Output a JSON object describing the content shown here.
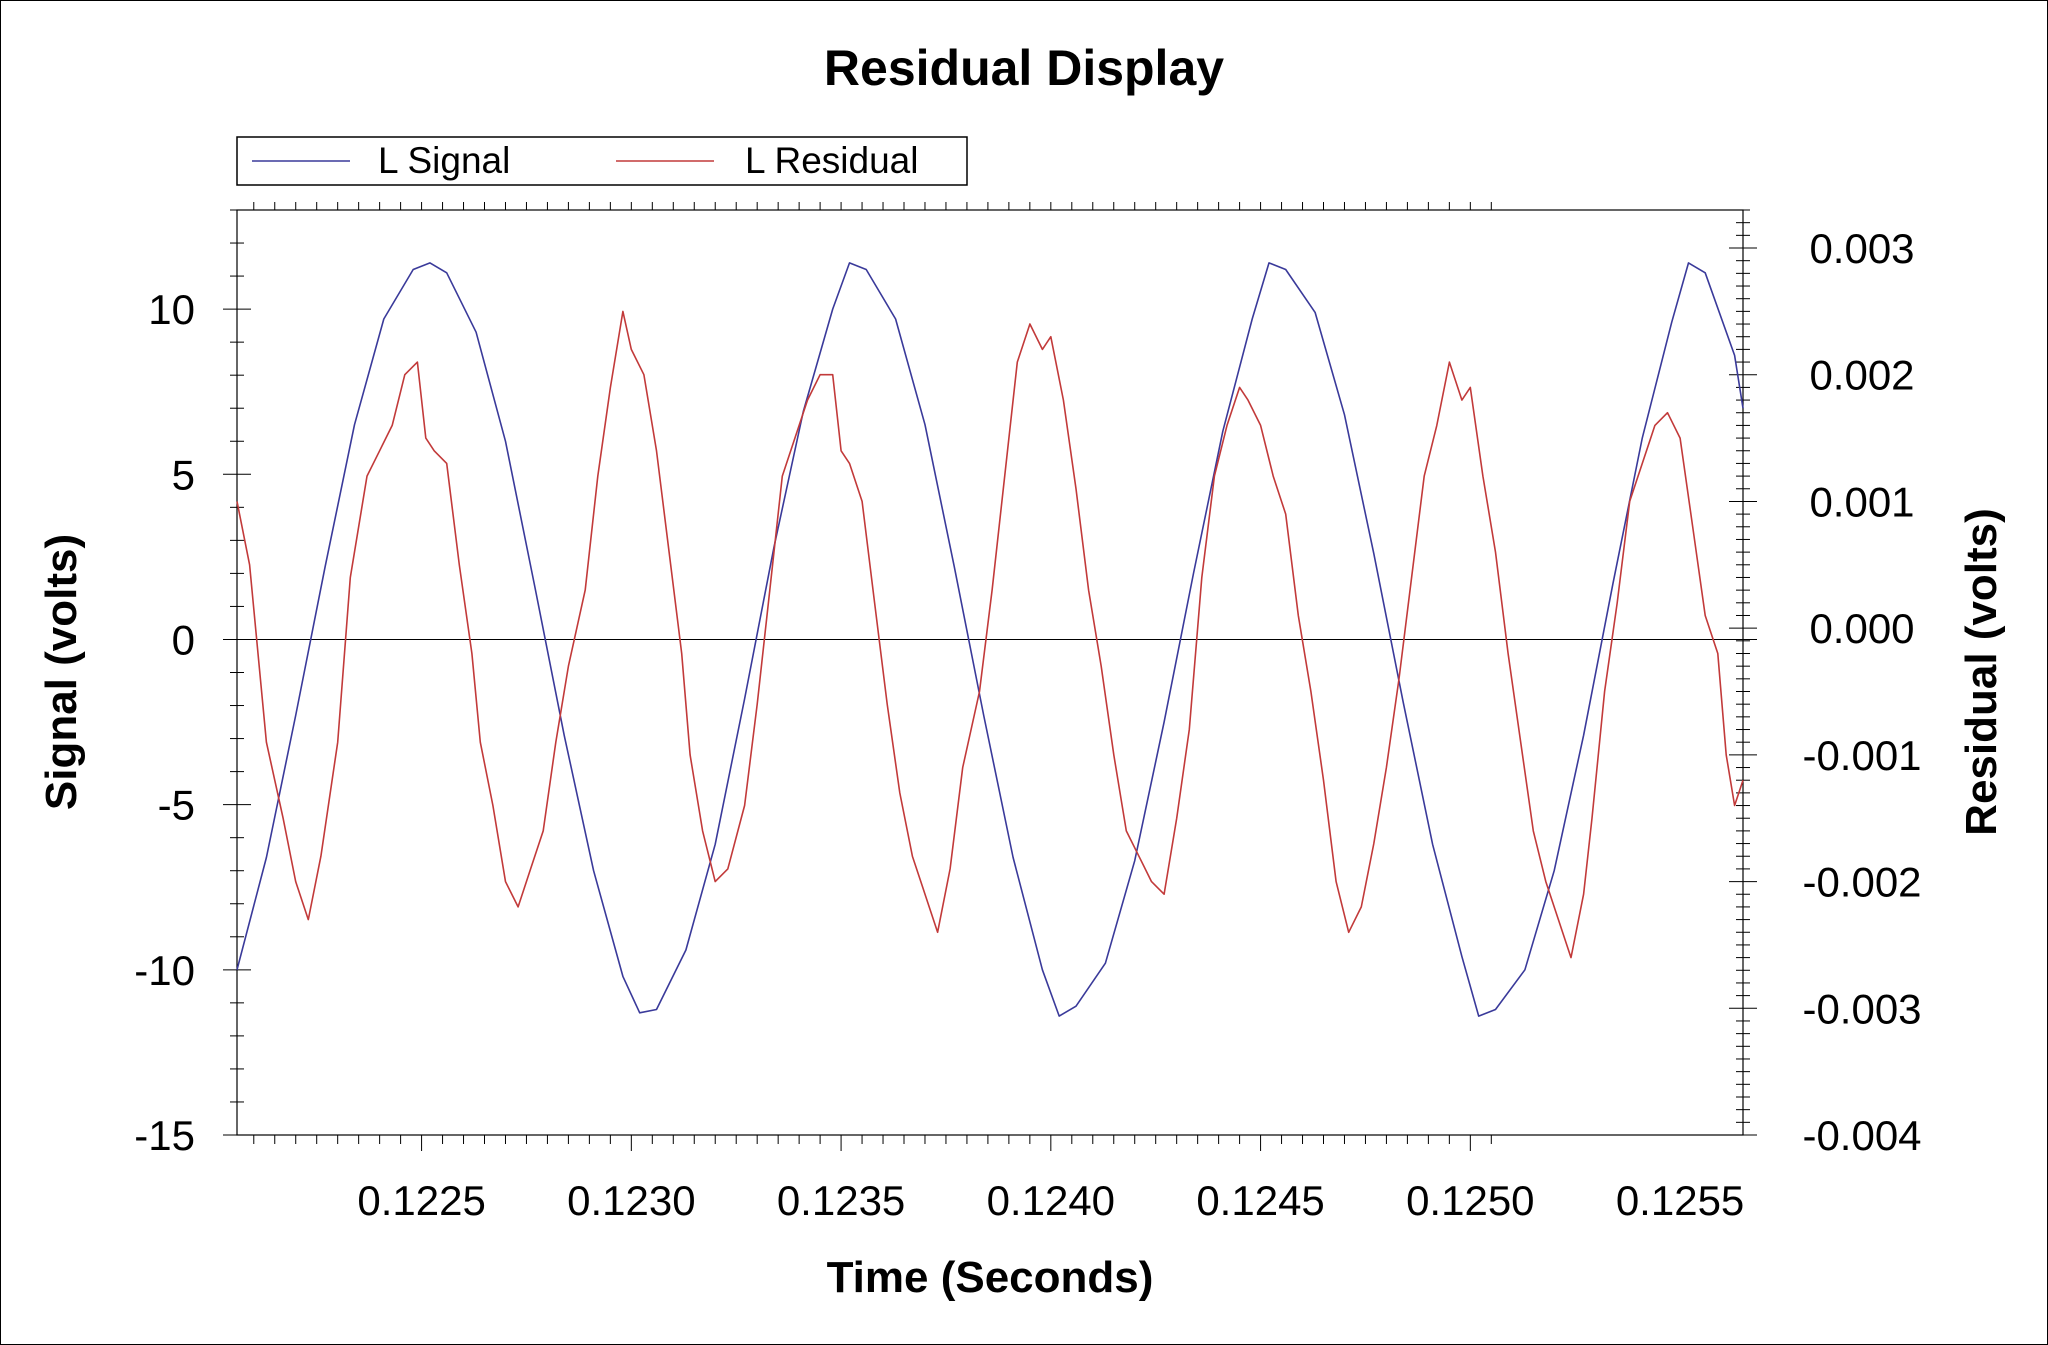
{
  "chart_data": {
    "type": "line",
    "title": "Residual Display",
    "xlabel": "Time (Seconds)",
    "ylabel_left": "Signal (volts)",
    "ylabel_right": "Residual (volts)",
    "xlim": [
      0.12206,
      0.12565
    ],
    "ylim_left": [
      -15,
      13
    ],
    "ylim_right": [
      -0.004,
      0.0033
    ],
    "grid": false,
    "legend_position": "top-left",
    "x_tick_labels": [
      "0.1225",
      "0.1230",
      "0.1235",
      "0.1240",
      "0.1245",
      "0.1250",
      "0.1255"
    ],
    "x_ticks": [
      0.1225,
      0.123,
      0.1235,
      0.124,
      0.1245,
      0.125,
      0.1255
    ],
    "y_left_tick_labels": [
      "10",
      "5",
      "0",
      "-5",
      "-10",
      "-15"
    ],
    "y_left_ticks": [
      10,
      5,
      0,
      -5,
      -10,
      -15
    ],
    "y_right_tick_labels": [
      "0.003",
      "0.002",
      "0.001",
      "0.000",
      "-0.001",
      "-0.002",
      "-0.003",
      "-0.004"
    ],
    "y_right_ticks": [
      0.003,
      0.002,
      0.001,
      0,
      -0.001,
      -0.002,
      -0.003,
      -0.004
    ],
    "series": [
      {
        "name": "L Signal",
        "axis": "left",
        "color": "#3a3a9a",
        "x": [
          0.12206,
          0.12213,
          0.1222,
          0.12227,
          0.12234,
          0.12241,
          0.12248,
          0.12252,
          0.12256,
          0.12263,
          0.1227,
          0.12277,
          0.12284,
          0.12291,
          0.12298,
          0.12302,
          0.12306,
          0.12313,
          0.1232,
          0.12327,
          0.12334,
          0.12341,
          0.12348,
          0.12352,
          0.12356,
          0.12363,
          0.1237,
          0.12377,
          0.12384,
          0.12391,
          0.12398,
          0.12402,
          0.12406,
          0.12413,
          0.1242,
          0.12427,
          0.12434,
          0.12441,
          0.12448,
          0.12452,
          0.12456,
          0.12463,
          0.1247,
          0.12477,
          0.12484,
          0.12491,
          0.12498,
          0.12502,
          0.12506,
          0.12513,
          0.1252,
          0.12527,
          0.12534,
          0.12541,
          0.12548,
          0.12552,
          0.12556,
          0.12563,
          0.12565
        ],
        "y": [
          -10.0,
          -6.6,
          -2.3,
          2.2,
          6.5,
          9.7,
          11.2,
          11.4,
          11.1,
          9.3,
          6.0,
          1.6,
          -2.9,
          -7.0,
          -10.2,
          -11.3,
          -11.2,
          -9.4,
          -6.2,
          -1.8,
          2.8,
          6.9,
          10.0,
          11.4,
          11.2,
          9.7,
          6.5,
          2.2,
          -2.3,
          -6.6,
          -10.0,
          -11.4,
          -11.1,
          -9.8,
          -6.7,
          -2.5,
          2.0,
          6.3,
          9.7,
          11.4,
          11.2,
          9.9,
          6.8,
          2.6,
          -1.9,
          -6.2,
          -9.6,
          -11.4,
          -11.2,
          -10.0,
          -7.0,
          -2.9,
          1.7,
          6.1,
          9.6,
          11.4,
          11.1,
          8.6,
          7.0
        ]
      },
      {
        "name": "L Residual",
        "axis": "right",
        "color": "#c23a3a",
        "x": [
          0.12206,
          0.12209,
          0.12213,
          0.12217,
          0.1222,
          0.12223,
          0.12226,
          0.1223,
          0.12233,
          0.12237,
          0.1224,
          0.12243,
          0.12246,
          0.12249,
          0.12251,
          0.12253,
          0.12256,
          0.12259,
          0.12262,
          0.12264,
          0.12267,
          0.1227,
          0.12273,
          0.12276,
          0.12279,
          0.12282,
          0.12285,
          0.12289,
          0.12292,
          0.12295,
          0.12298,
          0.123,
          0.12303,
          0.12306,
          0.12309,
          0.12312,
          0.12314,
          0.12317,
          0.1232,
          0.12323,
          0.12327,
          0.1233,
          0.12333,
          0.12336,
          0.12339,
          0.12342,
          0.12345,
          0.12348,
          0.1235,
          0.12352,
          0.12355,
          0.12358,
          0.12361,
          0.12364,
          0.12367,
          0.1237,
          0.12373,
          0.12376,
          0.12379,
          0.12383,
          0.12386,
          0.12389,
          0.12392,
          0.12395,
          0.12398,
          0.124,
          0.12403,
          0.12406,
          0.12409,
          0.12412,
          0.12415,
          0.12418,
          0.12421,
          0.12424,
          0.12427,
          0.1243,
          0.12433,
          0.12436,
          0.12439,
          0.12442,
          0.12445,
          0.12447,
          0.1245,
          0.12453,
          0.12456,
          0.12459,
          0.12462,
          0.12465,
          0.12468,
          0.12471,
          0.12474,
          0.12477,
          0.1248,
          0.12483,
          0.12486,
          0.12489,
          0.12492,
          0.12495,
          0.12498,
          0.125,
          0.12503,
          0.12506,
          0.12509,
          0.12512,
          0.12515,
          0.12518,
          0.12521,
          0.12524,
          0.12527,
          0.12529,
          0.12532,
          0.12535,
          0.12538,
          0.12541,
          0.12544,
          0.12547,
          0.1255,
          0.12553,
          0.12556,
          0.12559,
          0.12561,
          0.12563,
          0.12565
        ],
        "y": [
          0.001,
          0.0005,
          -0.0009,
          -0.0015,
          -0.002,
          -0.0023,
          -0.0018,
          -0.0009,
          0.0004,
          0.0012,
          0.0014,
          0.0016,
          0.002,
          0.0021,
          0.0015,
          0.0014,
          0.0013,
          0.0005,
          -0.0002,
          -0.0009,
          -0.0014,
          -0.002,
          -0.0022,
          -0.0019,
          -0.0016,
          -0.0009,
          -0.0003,
          0.0003,
          0.0012,
          0.0019,
          0.0025,
          0.0022,
          0.002,
          0.0014,
          0.0006,
          -0.0002,
          -0.001,
          -0.0016,
          -0.002,
          -0.0019,
          -0.0014,
          -0.0006,
          0.0003,
          0.0012,
          0.0015,
          0.0018,
          0.002,
          0.002,
          0.0014,
          0.0013,
          0.001,
          0.0002,
          -0.0006,
          -0.0013,
          -0.0018,
          -0.0021,
          -0.0024,
          -0.0019,
          -0.0011,
          -0.0005,
          0.0003,
          0.0012,
          0.0021,
          0.0024,
          0.0022,
          0.0023,
          0.0018,
          0.0011,
          0.0003,
          -0.0003,
          -0.001,
          -0.0016,
          -0.0018,
          -0.002,
          -0.0021,
          -0.0015,
          -0.0008,
          0.0004,
          0.0012,
          0.0016,
          0.0019,
          0.0018,
          0.0016,
          0.0012,
          0.0009,
          0.0001,
          -0.0005,
          -0.0012,
          -0.002,
          -0.0024,
          -0.0022,
          -0.0017,
          -0.0011,
          -0.0004,
          0.0004,
          0.0012,
          0.0016,
          0.0021,
          0.0018,
          0.0019,
          0.0012,
          0.0006,
          -0.0002,
          -0.0009,
          -0.0016,
          -0.002,
          -0.0023,
          -0.0026,
          -0.0021,
          -0.0015,
          -0.0005,
          0.0002,
          0.001,
          0.0013,
          0.0016,
          0.0017,
          0.0015,
          0.0008,
          0.0001,
          -0.0002,
          -0.001,
          -0.0014,
          -0.0012
        ]
      }
    ]
  }
}
